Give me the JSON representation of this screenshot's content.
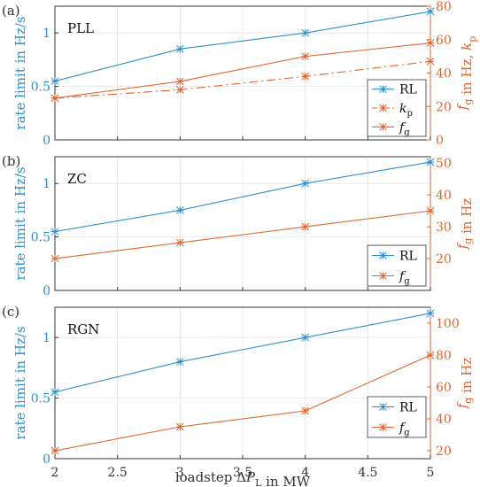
{
  "colors": {
    "rl": "#2b8fcf",
    "orange": "#e0642d",
    "axis": "#333333",
    "grid": "#e3e3e3"
  },
  "xlabel": "loadstep ΔP_L in MW",
  "x_ticks": [
    2,
    2.5,
    3,
    3.5,
    4,
    4.5,
    5
  ],
  "chart_data": [
    {
      "type": "line",
      "panel_label": "(a)",
      "title": "PLL",
      "xlim": [
        2,
        5
      ],
      "left_ylim": [
        0,
        1.25
      ],
      "left_ticks": [
        0,
        0.5,
        1
      ],
      "left_ylabel": "rate limit in Hz/s",
      "right_ylim": [
        0,
        80
      ],
      "right_ticks": [
        0,
        20,
        40,
        60,
        80
      ],
      "right_ylabel": "f_g in Hz, k_p",
      "x": [
        2,
        3,
        4,
        5
      ],
      "series": [
        {
          "name": "RL",
          "key": "rl",
          "axis": "left",
          "dash": "",
          "values": [
            0.55,
            0.85,
            1.0,
            1.2
          ]
        },
        {
          "name": "k_p",
          "key": "kp",
          "axis": "right",
          "dash": "10,4,2,4",
          "values": [
            25,
            30,
            38,
            47
          ]
        },
        {
          "name": "f_g",
          "key": "fg",
          "axis": "right",
          "dash": "",
          "values": [
            25,
            35,
            50,
            58
          ]
        }
      ],
      "legend": "bottom-right"
    },
    {
      "type": "line",
      "panel_label": "(b)",
      "title": "ZC",
      "xlim": [
        2,
        5
      ],
      "left_ylim": [
        0,
        1.25
      ],
      "left_ticks": [
        0,
        0.5,
        1
      ],
      "left_ylabel": "rate limit in Hz/s",
      "right_ylim": [
        10,
        52
      ],
      "right_ticks": [
        20,
        30,
        40,
        50
      ],
      "right_ylabel": "f_g in Hz",
      "x": [
        2,
        3,
        4,
        5
      ],
      "series": [
        {
          "name": "RL",
          "key": "rl",
          "axis": "left",
          "dash": "",
          "values": [
            0.55,
            0.75,
            1.0,
            1.2
          ]
        },
        {
          "name": "f_g",
          "key": "fg",
          "axis": "right",
          "dash": "",
          "values": [
            20,
            25,
            30,
            35
          ]
        }
      ],
      "legend": "bottom-right"
    },
    {
      "type": "line",
      "panel_label": "(c)",
      "title": "RGN",
      "xlim": [
        2,
        5
      ],
      "left_ylim": [
        0,
        1.25
      ],
      "left_ticks": [
        0,
        0.5,
        1
      ],
      "left_ylabel": "rate limit in Hz/s",
      "right_ylim": [
        15,
        110
      ],
      "right_ticks": [
        20,
        40,
        60,
        80,
        100
      ],
      "right_ylabel": "f_g in Hz",
      "x": [
        2,
        3,
        4,
        5
      ],
      "series": [
        {
          "name": "RL",
          "key": "rl",
          "axis": "left",
          "dash": "",
          "values": [
            0.55,
            0.8,
            1.0,
            1.2
          ]
        },
        {
          "name": "f_g",
          "key": "fg",
          "axis": "right",
          "dash": "",
          "values": [
            20,
            35,
            45,
            80
          ]
        }
      ],
      "legend": "bottom-right"
    }
  ]
}
